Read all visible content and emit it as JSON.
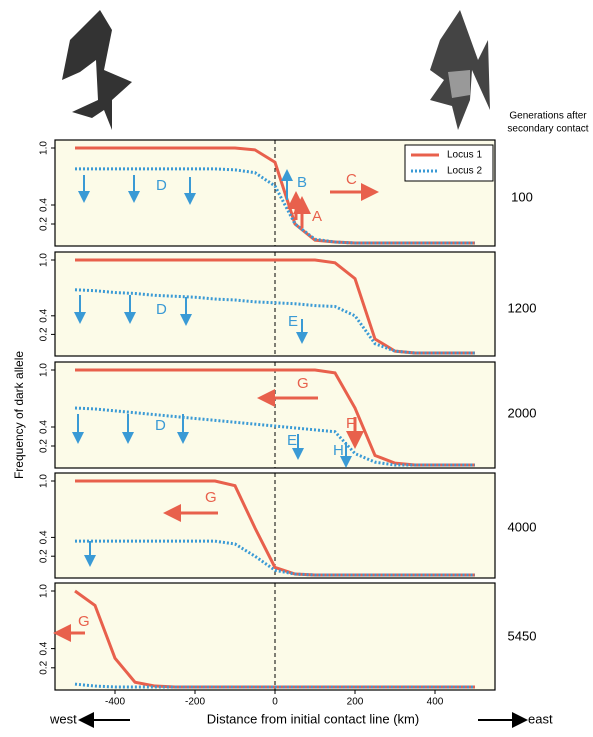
{
  "figure": {
    "gen_header_1": "Generations after",
    "gen_header_2": "secondary contact",
    "ylabel": "Frequency of dark allele",
    "xlabel": "Distance from initial contact line (km)",
    "west": "west",
    "east": "east"
  },
  "chart_data": [
    {
      "type": "line",
      "label": "100",
      "xlim": [
        -550,
        550
      ],
      "ylim": [
        0,
        1
      ],
      "yticks": [
        0.2,
        0.4,
        {
          "value": 1,
          "label": "1.0"
        }
      ],
      "legend": "upper right",
      "x": [
        -500,
        -450,
        -400,
        -350,
        -300,
        -250,
        -200,
        -150,
        -100,
        -50,
        0,
        50,
        100,
        150,
        200,
        250,
        300,
        350,
        400,
        450,
        500
      ],
      "series": [
        {
          "name": "Locus 1",
          "color": "#e8604c",
          "style": "solid",
          "values": [
            1,
            1,
            1,
            1,
            1,
            1,
            1,
            1,
            1,
            0.98,
            0.85,
            0.2,
            0.03,
            0.01,
            0,
            0,
            0,
            0,
            0,
            0,
            0
          ]
        },
        {
          "name": "Locus 2",
          "color": "#3a9ad5",
          "style": "dotted",
          "values": [
            0.78,
            0.78,
            0.78,
            0.78,
            0.78,
            0.78,
            0.78,
            0.78,
            0.77,
            0.74,
            0.6,
            0.2,
            0.04,
            0.01,
            0,
            0,
            0,
            0,
            0,
            0,
            0
          ]
        }
      ],
      "annotations": [
        "A",
        "B",
        "C",
        "D"
      ]
    },
    {
      "type": "line",
      "label": "1200",
      "xlim": [
        -550,
        550
      ],
      "ylim": [
        0,
        1
      ],
      "yticks": [
        0.2,
        0.4,
        {
          "value": 1,
          "label": "1.0"
        }
      ],
      "x": [
        -500,
        -450,
        -400,
        -350,
        -300,
        -250,
        -200,
        -150,
        -100,
        -50,
        0,
        50,
        100,
        150,
        200,
        250,
        300,
        350,
        400,
        450,
        500
      ],
      "series": [
        {
          "color": "#e8604c",
          "style": "solid",
          "values": [
            1,
            1,
            1,
            1,
            1,
            1,
            1,
            1,
            1,
            1,
            1,
            1,
            1,
            0.97,
            0.8,
            0.15,
            0.02,
            0,
            0,
            0,
            0
          ]
        },
        {
          "color": "#3a9ad5",
          "style": "dotted",
          "values": [
            0.68,
            0.67,
            0.65,
            0.64,
            0.62,
            0.61,
            0.6,
            0.58,
            0.57,
            0.55,
            0.54,
            0.53,
            0.51,
            0.5,
            0.4,
            0.1,
            0.02,
            0,
            0,
            0,
            0
          ]
        }
      ],
      "annotations": [
        "D",
        "E"
      ]
    },
    {
      "type": "line",
      "label": "2000",
      "xlim": [
        -550,
        550
      ],
      "ylim": [
        0,
        1
      ],
      "yticks": [
        0.2,
        0.4,
        {
          "value": 1,
          "label": "1.0"
        }
      ],
      "x": [
        -500,
        -450,
        -400,
        -350,
        -300,
        -250,
        -200,
        -150,
        -100,
        -50,
        0,
        50,
        100,
        150,
        200,
        250,
        300,
        350,
        400,
        450,
        500
      ],
      "series": [
        {
          "color": "#e8604c",
          "style": "solid",
          "values": [
            1,
            1,
            1,
            1,
            1,
            1,
            1,
            1,
            1,
            1,
            1,
            1,
            1,
            0.97,
            0.6,
            0.1,
            0.02,
            0,
            0,
            0,
            0
          ]
        },
        {
          "color": "#3a9ad5",
          "style": "dotted",
          "values": [
            0.6,
            0.59,
            0.57,
            0.55,
            0.53,
            0.51,
            0.49,
            0.47,
            0.45,
            0.43,
            0.41,
            0.39,
            0.37,
            0.35,
            0.12,
            0.03,
            0,
            0,
            0,
            0,
            0
          ]
        }
      ],
      "annotations": [
        "G",
        "F",
        "E",
        "H",
        "D"
      ]
    },
    {
      "type": "line",
      "label": "4000",
      "xlim": [
        -550,
        550
      ],
      "ylim": [
        0,
        1
      ],
      "yticks": [
        0.2,
        0.4,
        {
          "value": 1,
          "label": "1.0"
        }
      ],
      "x": [
        -500,
        -450,
        -400,
        -350,
        -300,
        -250,
        -200,
        -150,
        -100,
        -50,
        0,
        50,
        100,
        150,
        200,
        250,
        300,
        350,
        400,
        450,
        500
      ],
      "series": [
        {
          "color": "#e8604c",
          "style": "solid",
          "values": [
            1,
            1,
            1,
            1,
            1,
            1,
            1,
            1,
            0.95,
            0.5,
            0.08,
            0.01,
            0,
            0,
            0,
            0,
            0,
            0,
            0,
            0,
            0
          ]
        },
        {
          "color": "#3a9ad5",
          "style": "dotted",
          "values": [
            0.36,
            0.36,
            0.36,
            0.36,
            0.36,
            0.36,
            0.36,
            0.36,
            0.33,
            0.2,
            0.05,
            0.01,
            0,
            0,
            0,
            0,
            0,
            0,
            0,
            0,
            0
          ]
        }
      ],
      "annotations": [
        "G"
      ]
    },
    {
      "type": "line",
      "label": "5450",
      "xlim": [
        -550,
        550
      ],
      "ylim": [
        0,
        1
      ],
      "yticks": [
        0.2,
        0.4,
        {
          "value": 1,
          "label": "1.0"
        }
      ],
      "xticks": [
        -400,
        -200,
        0,
        200,
        400
      ],
      "x": [
        -500,
        -450,
        -400,
        -350,
        -300,
        -250,
        -200,
        -150,
        -100,
        -50,
        0,
        50,
        100,
        150,
        200,
        250,
        300,
        350,
        400,
        450,
        500
      ],
      "series": [
        {
          "color": "#e8604c",
          "style": "solid",
          "values": [
            1,
            0.85,
            0.3,
            0.05,
            0.01,
            0,
            0,
            0,
            0,
            0,
            0,
            0,
            0,
            0,
            0,
            0,
            0,
            0,
            0,
            0,
            0
          ]
        },
        {
          "color": "#3a9ad5",
          "style": "dotted",
          "values": [
            0.03,
            0.01,
            0,
            0,
            0,
            0,
            0,
            0,
            0,
            0,
            0,
            0,
            0,
            0,
            0,
            0,
            0,
            0,
            0,
            0,
            0
          ]
        }
      ],
      "annotations": [
        "G"
      ]
    }
  ]
}
